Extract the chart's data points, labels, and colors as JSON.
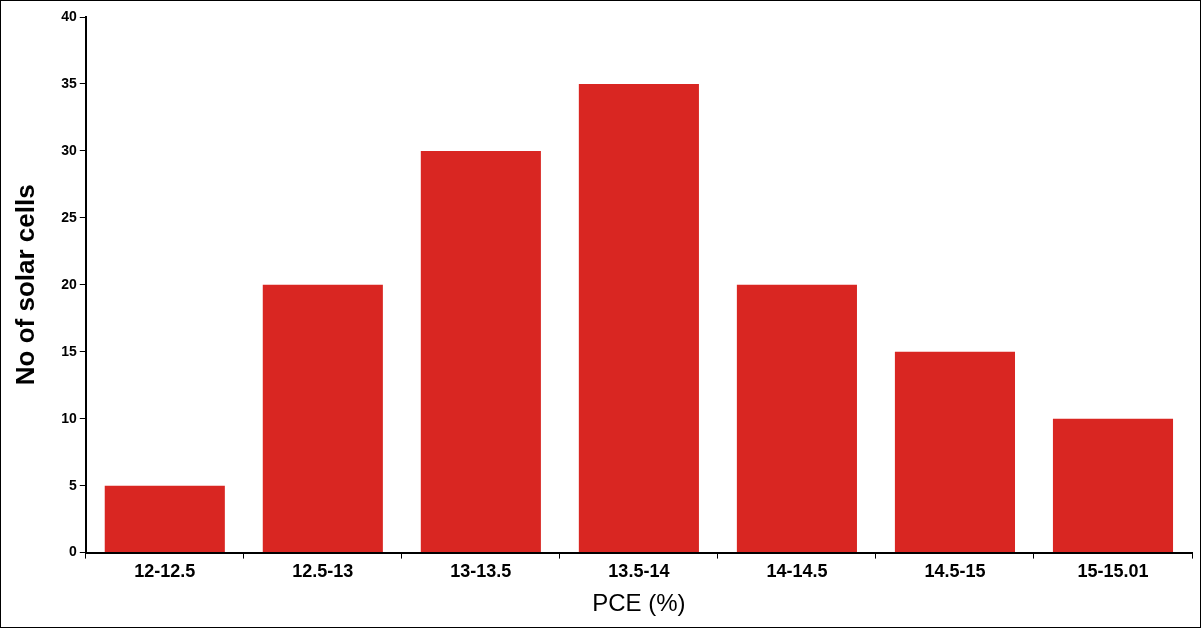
{
  "chart_data": {
    "type": "bar",
    "xlabel": "PCE (%)",
    "ylabel": "No of solar cells",
    "categories": [
      "12-12.5",
      "12.5-13",
      "13-13.5",
      "13.5-14",
      "14-14.5",
      "14.5-15",
      "15-15.01"
    ],
    "values": [
      5,
      20,
      30,
      35,
      20,
      15,
      10
    ],
    "color": "#d92622",
    "ylim": [
      0,
      40
    ],
    "yticks": [
      0,
      5,
      10,
      15,
      20,
      25,
      30,
      35,
      40
    ],
    "grid": false,
    "legend": false
  }
}
